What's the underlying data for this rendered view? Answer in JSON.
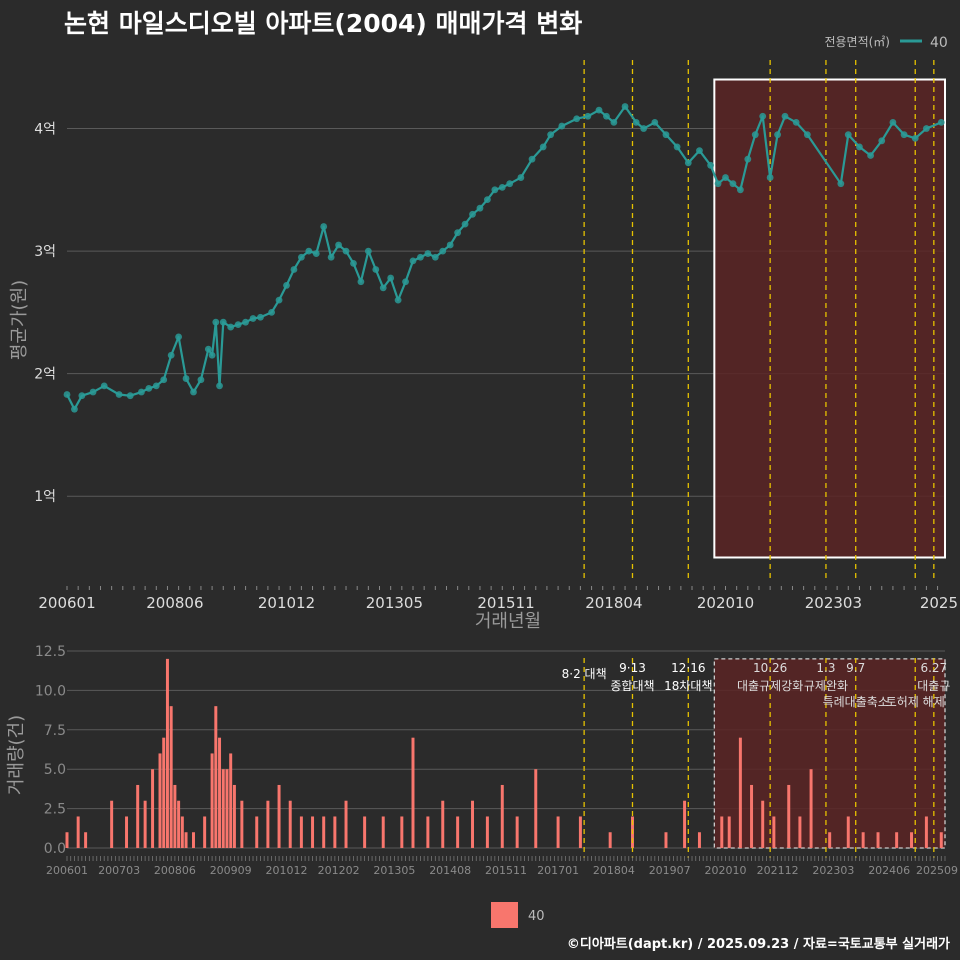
{
  "page": {
    "title": "논현 마일스디오빌 아파트(2004) 매매가격 변화",
    "credit": "©디아파트(dapt.kr) / 2025.09.23 / 자료=국토교통부 실거래가"
  },
  "colors": {
    "background": "#2b2b2b",
    "price_line": "#2a9a96",
    "volume_bar": "#f8766d",
    "policy_line": "#e6c200",
    "highlight_fill": "#5a2424",
    "grid": "#5a5a5a",
    "axis_text": "#dddddd"
  },
  "chart_data": [
    {
      "type": "line",
      "ylabel": "평균가(원)",
      "xlabel": "거래년월",
      "x_ticks": [
        "200601",
        "200806",
        "201012",
        "201305",
        "201511",
        "201804",
        "202010",
        "202303",
        "2025"
      ],
      "y_ticks": [
        {
          "value": 1,
          "label": "1억"
        },
        {
          "value": 2,
          "label": "2억"
        },
        {
          "value": 3,
          "label": "3억"
        },
        {
          "value": 4,
          "label": "4억"
        }
      ],
      "ylim": [
        0.3,
        4.6
      ],
      "legend": {
        "title": "전용면적(㎡)",
        "entries": [
          "40"
        ],
        "position": "top-right"
      },
      "policy_lines": [
        "2017-08",
        "2018-09",
        "2019-12",
        "2021-10",
        "2023-01",
        "2023-09",
        "2025-01",
        "2025-06"
      ],
      "highlight": {
        "from": "2020-07",
        "to": "2025-09",
        "ymin": 0.5,
        "ymax": 4.4
      },
      "series": [
        {
          "name": "40",
          "points": [
            [
              "2006-01",
              1.83
            ],
            [
              "2006-03",
              1.71
            ],
            [
              "2006-05",
              1.82
            ],
            [
              "2006-08",
              1.85
            ],
            [
              "2006-11",
              1.9
            ],
            [
              "2007-03",
              1.83
            ],
            [
              "2007-06",
              1.82
            ],
            [
              "2007-09",
              1.85
            ],
            [
              "2007-11",
              1.88
            ],
            [
              "2008-01",
              1.9
            ],
            [
              "2008-03",
              1.95
            ],
            [
              "2008-05",
              2.15
            ],
            [
              "2008-07",
              2.3
            ],
            [
              "2008-09",
              1.96
            ],
            [
              "2008-11",
              1.85
            ],
            [
              "2009-01",
              1.95
            ],
            [
              "2009-03",
              2.2
            ],
            [
              "2009-04",
              2.15
            ],
            [
              "2009-05",
              2.42
            ],
            [
              "2009-06",
              1.9
            ],
            [
              "2009-07",
              2.42
            ],
            [
              "2009-09",
              2.38
            ],
            [
              "2009-11",
              2.4
            ],
            [
              "2010-01",
              2.42
            ],
            [
              "2010-03",
              2.45
            ],
            [
              "2010-05",
              2.46
            ],
            [
              "2010-08",
              2.5
            ],
            [
              "2010-10",
              2.6
            ],
            [
              "2010-12",
              2.72
            ],
            [
              "2011-02",
              2.85
            ],
            [
              "2011-04",
              2.95
            ],
            [
              "2011-06",
              3.0
            ],
            [
              "2011-08",
              2.98
            ],
            [
              "2011-10",
              3.2
            ],
            [
              "2011-12",
              2.95
            ],
            [
              "2012-02",
              3.05
            ],
            [
              "2012-04",
              3.0
            ],
            [
              "2012-06",
              2.9
            ],
            [
              "2012-08",
              2.75
            ],
            [
              "2012-10",
              3.0
            ],
            [
              "2012-12",
              2.85
            ],
            [
              "2013-02",
              2.7
            ],
            [
              "2013-04",
              2.78
            ],
            [
              "2013-06",
              2.6
            ],
            [
              "2013-08",
              2.75
            ],
            [
              "2013-10",
              2.92
            ],
            [
              "2013-12",
              2.95
            ],
            [
              "2014-02",
              2.98
            ],
            [
              "2014-04",
              2.95
            ],
            [
              "2014-06",
              3.0
            ],
            [
              "2014-08",
              3.05
            ],
            [
              "2014-10",
              3.15
            ],
            [
              "2014-12",
              3.22
            ],
            [
              "2015-02",
              3.3
            ],
            [
              "2015-04",
              3.35
            ],
            [
              "2015-06",
              3.42
            ],
            [
              "2015-08",
              3.5
            ],
            [
              "2015-10",
              3.52
            ],
            [
              "2015-12",
              3.55
            ],
            [
              "2016-03",
              3.6
            ],
            [
              "2016-06",
              3.75
            ],
            [
              "2016-09",
              3.85
            ],
            [
              "2016-11",
              3.95
            ],
            [
              "2017-02",
              4.02
            ],
            [
              "2017-06",
              4.08
            ],
            [
              "2017-09",
              4.1
            ],
            [
              "2017-12",
              4.15
            ],
            [
              "2018-02",
              4.1
            ],
            [
              "2018-04",
              4.05
            ],
            [
              "2018-07",
              4.18
            ],
            [
              "2018-10",
              4.05
            ],
            [
              "2018-12",
              4.0
            ],
            [
              "2019-03",
              4.05
            ],
            [
              "2019-06",
              3.95
            ],
            [
              "2019-09",
              3.85
            ],
            [
              "2019-12",
              3.72
            ],
            [
              "2020-03",
              3.82
            ],
            [
              "2020-06",
              3.7
            ],
            [
              "2020-08",
              3.55
            ],
            [
              "2020-10",
              3.6
            ],
            [
              "2020-12",
              3.55
            ],
            [
              "2021-02",
              3.5
            ],
            [
              "2021-04",
              3.75
            ],
            [
              "2021-06",
              3.95
            ],
            [
              "2021-08",
              4.1
            ],
            [
              "2021-10",
              3.6
            ],
            [
              "2021-12",
              3.95
            ],
            [
              "2022-02",
              4.1
            ],
            [
              "2022-05",
              4.05
            ],
            [
              "2022-08",
              3.95
            ],
            [
              "2023-05",
              3.55
            ],
            [
              "2023-07",
              3.95
            ],
            [
              "2023-10",
              3.85
            ],
            [
              "2024-01",
              3.78
            ],
            [
              "2024-04",
              3.9
            ],
            [
              "2024-07",
              4.05
            ],
            [
              "2024-10",
              3.95
            ],
            [
              "2025-01",
              3.92
            ],
            [
              "2025-04",
              4.0
            ],
            [
              "2025-08",
              4.05
            ]
          ]
        }
      ]
    },
    {
      "type": "bar",
      "ylabel": "거래량(건)",
      "x_ticks": [
        "200601",
        "200703",
        "200806",
        "200909",
        "201012",
        "201202",
        "201305",
        "201408",
        "201511",
        "201701",
        "201804",
        "201907",
        "202010",
        "202112",
        "202303",
        "202406",
        "202509"
      ],
      "y_ticks": [
        0,
        2.5,
        5,
        7.5,
        10,
        12.5
      ],
      "ylim": [
        0,
        12.5
      ],
      "legend": {
        "entries": [
          "40"
        ],
        "position": "bottom"
      },
      "highlight": {
        "from": "2020-07",
        "to": "2025-09",
        "ymin": 0,
        "ymax": 12
      },
      "annotations": [
        {
          "date": "2017-08",
          "date_label": "",
          "label": "8·2 대책"
        },
        {
          "date": "2018-09",
          "date_label": "9·13",
          "label": "종합대책"
        },
        {
          "date": "2019-12",
          "date_label": "12·16",
          "label": "18차대책"
        },
        {
          "date": "2021-10",
          "date_label": "10.26",
          "label": "대출규제강화"
        },
        {
          "date": "2023-01",
          "date_label": "1.3",
          "label": "규제완화"
        },
        {
          "date": "2023-09",
          "date_label": "9.7",
          "label": "특례대출축소"
        },
        {
          "date": "2025-01",
          "date_label": "",
          "label": "토허제 해제"
        },
        {
          "date": "2025-06",
          "date_label": "6.27",
          "label": "대출규"
        }
      ],
      "series": [
        {
          "name": "40",
          "months": [
            "2006-01",
            "2006-04",
            "2006-06",
            "2007-01",
            "2007-05",
            "2007-08",
            "2007-10",
            "2007-12",
            "2008-02",
            "2008-03",
            "2008-04",
            "2008-05",
            "2008-06",
            "2008-07",
            "2008-08",
            "2008-09",
            "2008-11",
            "2009-02",
            "2009-04",
            "2009-05",
            "2009-06",
            "2009-07",
            "2009-08",
            "2009-09",
            "2009-10",
            "2009-12",
            "2010-04",
            "2010-07",
            "2010-10",
            "2011-01",
            "2011-04",
            "2011-07",
            "2011-10",
            "2012-01",
            "2012-04",
            "2012-09",
            "2013-02",
            "2013-07",
            "2013-10",
            "2014-02",
            "2014-06",
            "2014-10",
            "2015-02",
            "2015-06",
            "2015-10",
            "2016-02",
            "2016-07",
            "2017-01",
            "2017-07",
            "2018-03",
            "2018-09",
            "2019-06",
            "2019-11",
            "2020-03",
            "2020-09",
            "2020-11",
            "2021-02",
            "2021-05",
            "2021-08",
            "2021-11",
            "2022-03",
            "2022-06",
            "2022-09",
            "2023-02",
            "2023-07",
            "2023-11",
            "2024-03",
            "2024-08",
            "2024-12",
            "2025-04",
            "2025-08"
          ],
          "values": [
            1,
            2,
            1,
            3,
            2,
            4,
            3,
            5,
            6,
            7,
            12,
            9,
            4,
            3,
            2,
            1,
            1,
            2,
            6,
            9,
            7,
            5,
            5,
            6,
            4,
            3,
            2,
            3,
            4,
            3,
            2,
            2,
            2,
            2,
            3,
            2,
            2,
            2,
            7,
            2,
            3,
            2,
            3,
            2,
            4,
            2,
            5,
            2,
            2,
            1,
            2,
            1,
            3,
            1,
            2,
            2,
            7,
            4,
            3,
            2,
            4,
            2,
            5,
            1,
            2,
            1,
            1,
            1,
            1,
            2,
            1
          ]
        }
      ]
    }
  ]
}
